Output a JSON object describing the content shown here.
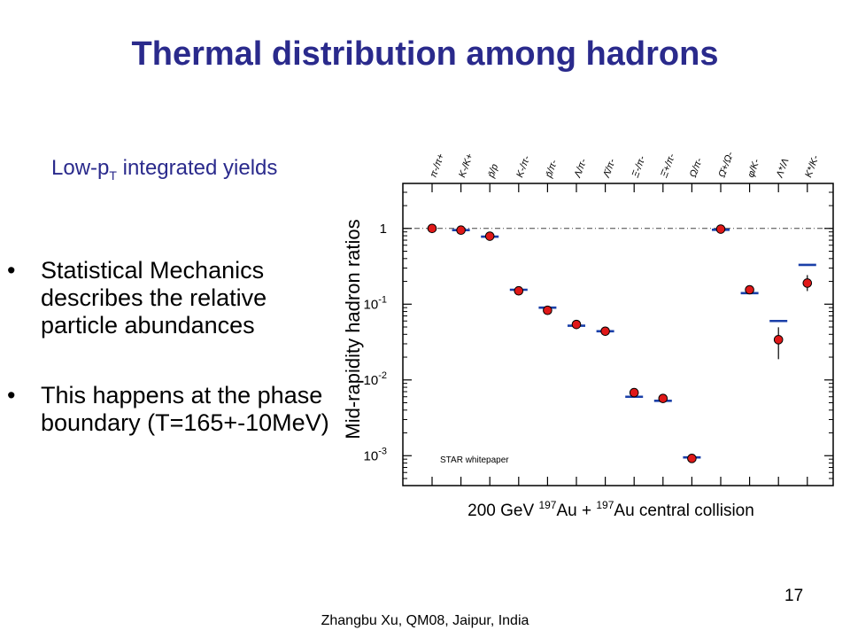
{
  "slide": {
    "title": "Thermal distribution among hadrons",
    "subtitle_main": "Low-p",
    "subtitle_sub": "T",
    "subtitle_rest": " integrated yields",
    "bullets": [
      "Statistical Mechanics describes the relative particle abundances",
      "This happens at the phase boundary (T=165+-10MeV)"
    ],
    "bullet_glyph": "•",
    "page_number": "17",
    "footer": "Zhangbu Xu, QM08, Jaipur, India"
  },
  "chart_data": {
    "type": "scatter",
    "yscale": "log",
    "ylim": [
      0.0005,
      3
    ],
    "ylabel": "Mid-rapidity hadron ratios",
    "xlabel": "200 GeV 197Au + 197Au central collision",
    "xlabel_parts": [
      "200 GeV ",
      "197",
      "Au + ",
      "197",
      "Au central collision"
    ],
    "ytick_labels": [
      "1",
      "10-1",
      "10-2",
      "10-3"
    ],
    "annotation": "STAR whitepaper",
    "categories": [
      "π-/π+",
      "K-/K+",
      "p̄/p",
      "K-/π-",
      "p̄/π-",
      "Λ/π-",
      "Λ̄/π-",
      "Ξ-/π-",
      "Ξ̄+/π-",
      "Ω/π-",
      "Ω̄+/Ω-",
      "φ/K-",
      "Λ*/Λ",
      "K*/K-"
    ],
    "series": [
      {
        "values": [
          1.0,
          0.95,
          0.79,
          0.15,
          0.083,
          0.054,
          0.044,
          0.0068,
          0.0057,
          0.00092,
          0.98,
          0.155,
          0.034,
          0.19
        ]
      },
      {
        "values": [
          null,
          0.95,
          0.78,
          0.155,
          0.09,
          0.052,
          0.044,
          0.006,
          0.0053,
          0.00095,
          0.96,
          0.14,
          0.06,
          0.33
        ]
      }
    ],
    "reference_line": 1,
    "colors": {
      "marker": "#e01818",
      "model": "#1a3fa8",
      "axis": "#000000"
    }
  }
}
